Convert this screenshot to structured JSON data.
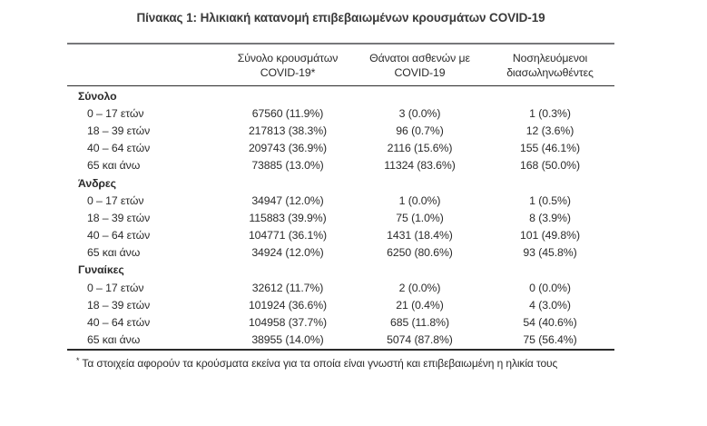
{
  "page": {
    "title": "Πίνακας 1: Ηλικιακή κατανομή επιβεβαιωμένων κρουσμάτων COVID-19"
  },
  "table": {
    "columns": [
      {
        "line1": "Σύνολο κρουσμάτων",
        "line2": "COVID-19*"
      },
      {
        "line1": "Θάνατοι ασθενών με",
        "line2": "COVID-19"
      },
      {
        "line1": "Νοσηλευόμενοι",
        "line2": "διασωληνωθέντες"
      }
    ],
    "sections": [
      {
        "label": "Σύνολο",
        "rows": [
          {
            "age": "0 – 17 ετών",
            "cases": "67560 (11.9%)",
            "deaths": "3 (0.0%)",
            "intubated": "1 (0.3%)"
          },
          {
            "age": "18 – 39 ετών",
            "cases": "217813 (38.3%)",
            "deaths": "96 (0.7%)",
            "intubated": "12 (3.6%)"
          },
          {
            "age": "40 – 64 ετών",
            "cases": "209743 (36.9%)",
            "deaths": "2116 (15.6%)",
            "intubated": "155 (46.1%)"
          },
          {
            "age": "65 και άνω",
            "cases": "73885 (13.0%)",
            "deaths": "11324 (83.6%)",
            "intubated": "168 (50.0%)"
          }
        ]
      },
      {
        "label": "Άνδρες",
        "rows": [
          {
            "age": "0 – 17 ετών",
            "cases": "34947 (12.0%)",
            "deaths": "1 (0.0%)",
            "intubated": "1 (0.5%)"
          },
          {
            "age": "18 – 39 ετών",
            "cases": "115883 (39.9%)",
            "deaths": "75 (1.0%)",
            "intubated": "8 (3.9%)"
          },
          {
            "age": "40 – 64 ετών",
            "cases": "104771 (36.1%)",
            "deaths": "1431 (18.4%)",
            "intubated": "101 (49.8%)"
          },
          {
            "age": "65 και άνω",
            "cases": "34924 (12.0%)",
            "deaths": "6250 (80.6%)",
            "intubated": "93 (45.8%)"
          }
        ]
      },
      {
        "label": "Γυναίκες",
        "rows": [
          {
            "age": "0 – 17 ετών",
            "cases": "32612 (11.7%)",
            "deaths": "2 (0.0%)",
            "intubated": "0 (0.0%)"
          },
          {
            "age": "18 – 39 ετών",
            "cases": "101924 (36.6%)",
            "deaths": "21 (0.4%)",
            "intubated": "4 (3.0%)"
          },
          {
            "age": "40 – 64 ετών",
            "cases": "104958 (37.7%)",
            "deaths": "685 (11.8%)",
            "intubated": "54 (40.6%)"
          },
          {
            "age": "65 και άνω",
            "cases": "38955 (14.0%)",
            "deaths": "5074 (87.8%)",
            "intubated": "75 (56.4%)"
          }
        ]
      }
    ]
  },
  "footnote": {
    "marker": "*",
    "text": "Τα στοιχεία αφορούν τα κρούσματα εκείνα για τα οποία είναι γνωστή και επιβεβαιωμένη η ηλικία τους"
  },
  "colors": {
    "text": "#2b2b2b",
    "title": "#3a3a3a",
    "rule_top": "#77787b",
    "rule_dark": "#2b2b2b",
    "background": "#ffffff"
  }
}
